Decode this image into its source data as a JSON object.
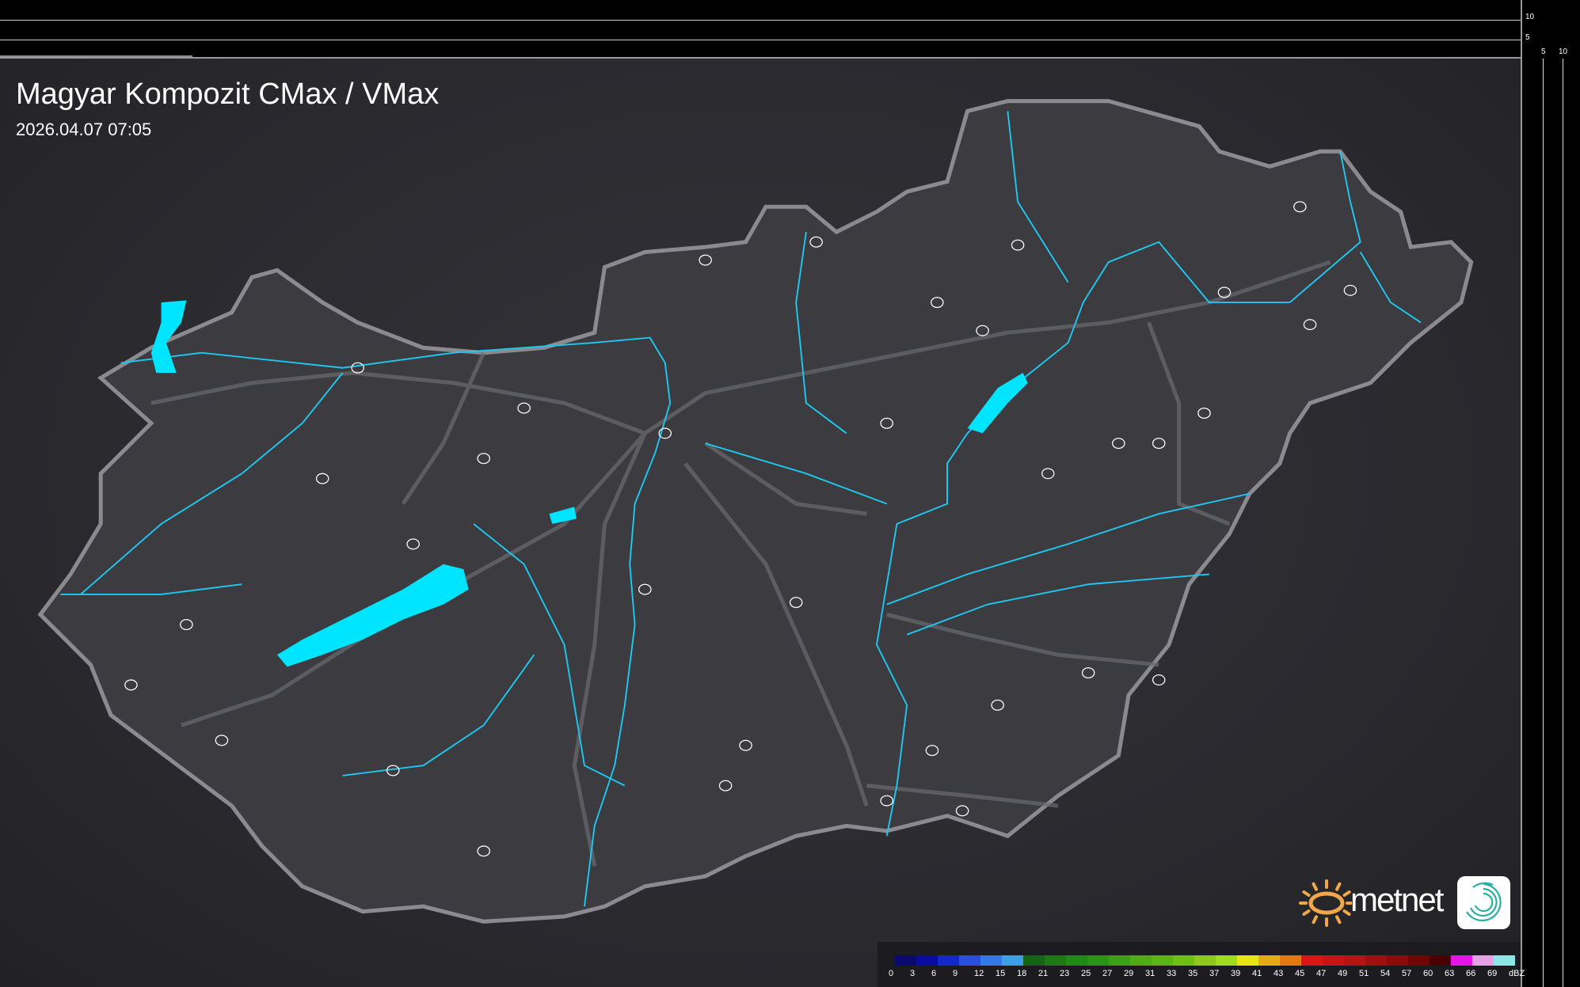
{
  "header": {
    "title": "Magyar Kompozit CMax / VMax",
    "timestamp": "2026.04.07 07:05"
  },
  "scale_axes": {
    "vertical_ticks": [
      "10",
      "5"
    ],
    "horizontal_ticks": [
      "5",
      "10"
    ]
  },
  "legend": {
    "unit": "dBZ",
    "labels": [
      "0",
      "3",
      "6",
      "9",
      "12",
      "15",
      "18",
      "21",
      "23",
      "25",
      "27",
      "29",
      "31",
      "33",
      "35",
      "37",
      "39",
      "41",
      "43",
      "45",
      "47",
      "49",
      "51",
      "54",
      "57",
      "60",
      "63",
      "66",
      "69"
    ],
    "colors": [
      "#0a0a6e",
      "#0a0aa0",
      "#1428c8",
      "#2850dc",
      "#3278e6",
      "#3ca0e6",
      "#146414",
      "#1e7814",
      "#1e8c14",
      "#289614",
      "#3ca014",
      "#50aa14",
      "#5ab414",
      "#6ebe14",
      "#8cc81e",
      "#a0dc1e",
      "#e6e614",
      "#e6aa14",
      "#e67814",
      "#dc1414",
      "#c81414",
      "#b41414",
      "#a00f0f",
      "#8c0a0a",
      "#700505",
      "#4a0000",
      "#e614e6",
      "#e6a0e6",
      "#8ce6e6"
    ]
  },
  "map": {
    "country_fill": "#3b3b40",
    "border_color": "#8a8a90",
    "water_color": "#1ec8f0",
    "lake_color": "#00e5ff",
    "road_color": "#6a6a70",
    "city_outline_color": "#ffffff"
  },
  "branding": {
    "logo_text": "metnet",
    "sun_color": "#f0a848"
  }
}
